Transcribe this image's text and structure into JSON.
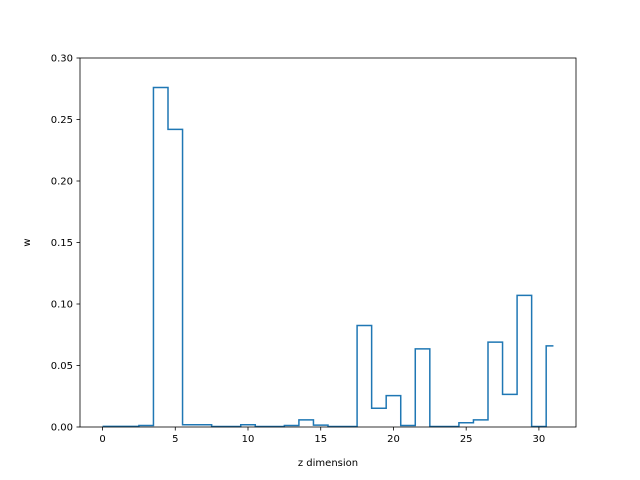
{
  "chart_data": {
    "type": "line",
    "drawstyle": "steps-mid",
    "title": "",
    "xlabel": "z dimension",
    "ylabel": "w",
    "xlim": [
      -1.55,
      32.55
    ],
    "ylim": [
      0,
      0.3
    ],
    "grid": false,
    "line_color": "#1f77b4",
    "xticks": [
      0,
      5,
      10,
      15,
      20,
      25,
      30
    ],
    "xtick_labels": [
      "0",
      "5",
      "10",
      "15",
      "20",
      "25",
      "30"
    ],
    "yticks": [
      0,
      0.05,
      0.1,
      0.15,
      0.2,
      0.25,
      0.3
    ],
    "ytick_labels": [
      "0.00",
      "0.05",
      "0.10",
      "0.15",
      "0.20",
      "0.25",
      "0.30"
    ],
    "series": [
      {
        "x": [
          0,
          1,
          2,
          3,
          4,
          5,
          6,
          7,
          8,
          9,
          10,
          11,
          12,
          13,
          14,
          15,
          16,
          17,
          18,
          19,
          20,
          21,
          22,
          23,
          24,
          25,
          26,
          27,
          28,
          29,
          30,
          31
        ],
        "values": [
          0.0005,
          0.0005,
          0.0005,
          0.0012,
          0.276,
          0.242,
          0.0018,
          0.0018,
          0.0004,
          0.0004,
          0.0018,
          0.0004,
          0.0004,
          0.0012,
          0.0058,
          0.0015,
          0.0004,
          0.0004,
          0.0825,
          0.0152,
          0.0255,
          0.0012,
          0.0635,
          0.0004,
          0.0004,
          0.0035,
          0.0058,
          0.069,
          0.0265,
          0.107,
          0.0004,
          0.066
        ]
      }
    ]
  }
}
